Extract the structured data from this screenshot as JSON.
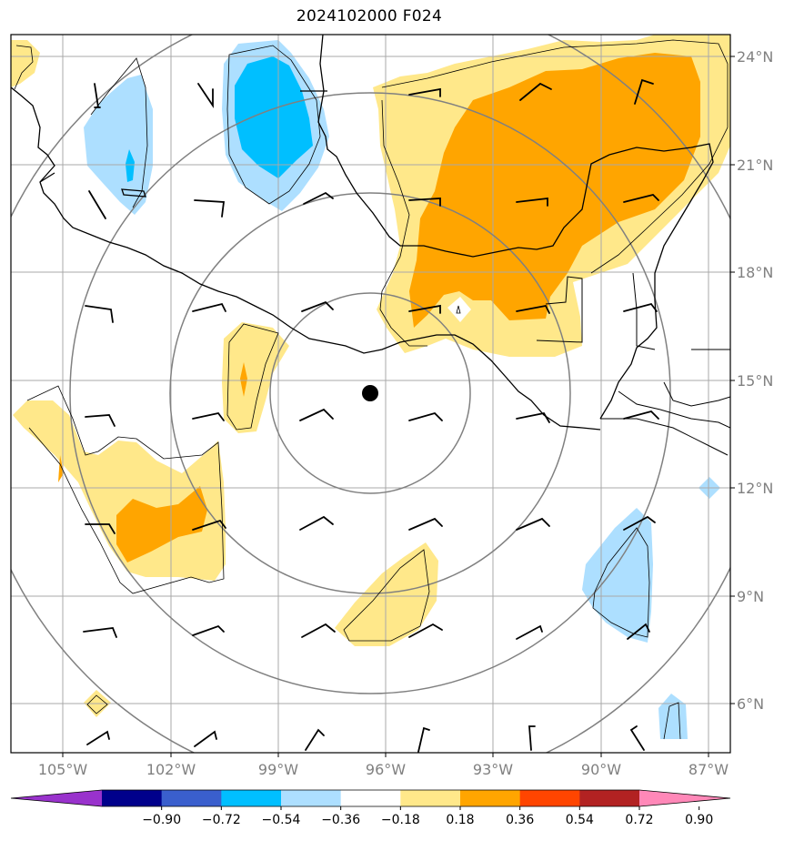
{
  "title": "2024102000 F024",
  "lon_labels": [
    "105°W",
    "102°W",
    "99°W",
    "96°W",
    "93°W",
    "90°W",
    "87°W"
  ],
  "lat_labels": [
    "24°N",
    "21°N",
    "18°N",
    "15°N",
    "12°N",
    "9°N",
    "6°N"
  ],
  "colorbar": {
    "colors": [
      "#9932cc",
      "#00008b",
      "#3a5fcd",
      "#00bfff",
      "#addfff",
      "#ffffff",
      "#ffe88a",
      "#ffa500",
      "#ff4500",
      "#b22222",
      "#ff88b8"
    ],
    "labels": [
      "−0.90",
      "−0.72",
      "−0.54",
      "−0.36",
      "−0.18",
      "0.18",
      "0.36",
      "0.54",
      "0.72",
      "0.90"
    ]
  },
  "center_marker": "storm-center-dot"
}
